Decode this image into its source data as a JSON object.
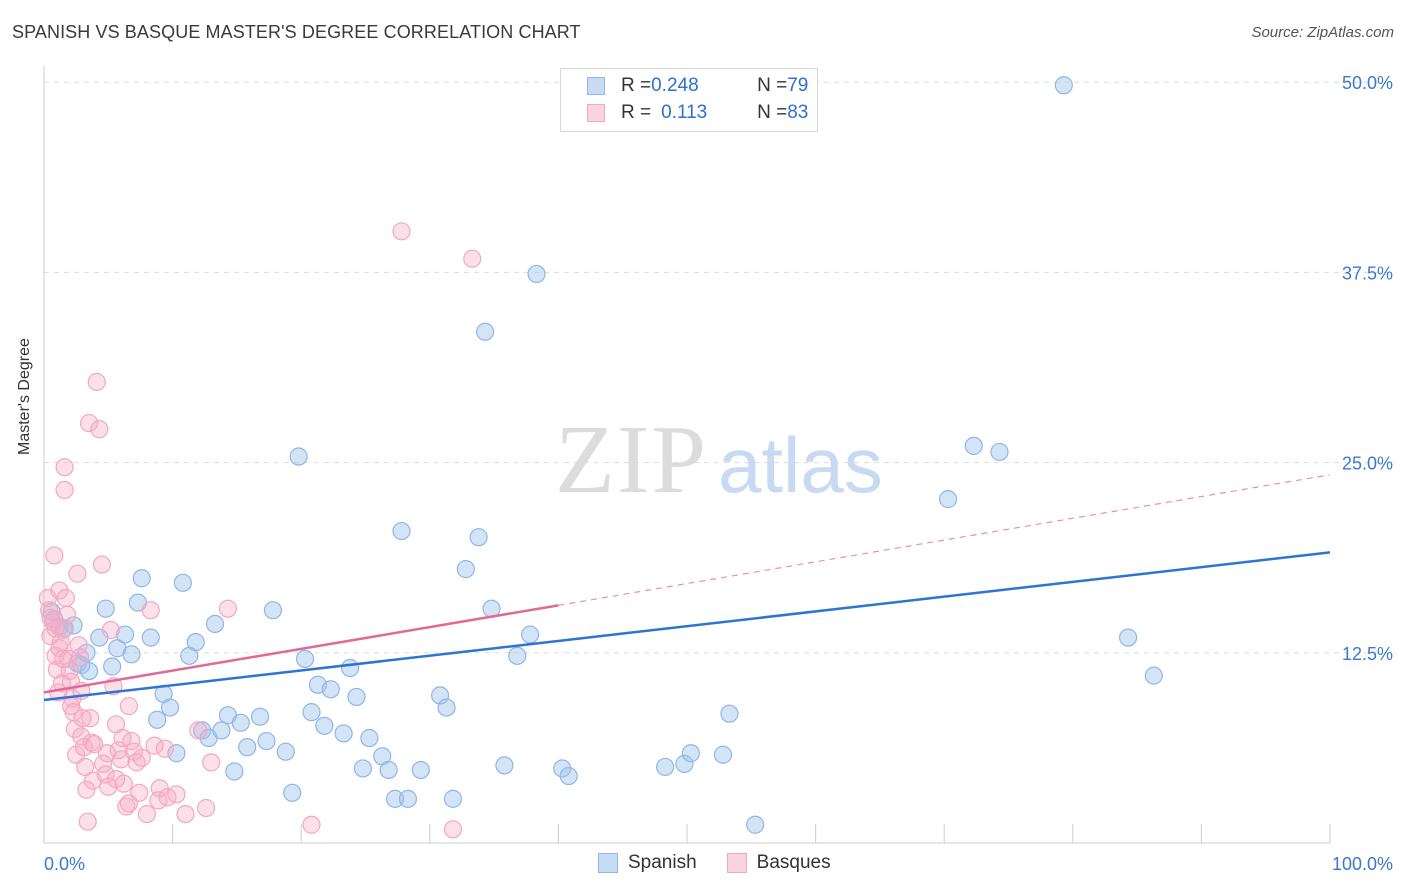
{
  "title": "SPANISH VS BASQUE MASTER'S DEGREE CORRELATION CHART",
  "source": "Source: ZipAtlas.com",
  "watermark": {
    "zip": "ZIP",
    "atlas": "atlas"
  },
  "legend_top": [
    {
      "r_label": "R = ",
      "r_value": "0.248",
      "n_label": "N = ",
      "n_value": "79",
      "color": "#8fb6e8"
    },
    {
      "r_label": "R = ",
      "r_value": "0.113",
      "n_label": "N = ",
      "n_value": "83",
      "color": "#f4a7c0"
    }
  ],
  "chart_data": {
    "type": "scatter",
    "title": "SPANISH VS BASQUE MASTER'S DEGREE CORRELATION CHART",
    "ylabel": "Master's Degree",
    "xlim": [
      0,
      100
    ],
    "ylim": [
      0,
      51
    ],
    "x_tick_labels": [
      {
        "value": 0,
        "label": "0.0%"
      },
      {
        "value": 100,
        "label": "100.0%"
      }
    ],
    "y_tick_labels": [
      {
        "value": 12.5,
        "label": "12.5%"
      },
      {
        "value": 25,
        "label": "25.0%"
      },
      {
        "value": 37.5,
        "label": "37.5%"
      },
      {
        "value": 50,
        "label": "50.0%"
      }
    ],
    "grid": true,
    "legend_position": "bottom",
    "series": [
      {
        "name": "Spanish",
        "color": "#8fb6e8",
        "line_color": "#2f74d0",
        "trend": {
          "x": [
            0,
            100
          ],
          "y": [
            9.4,
            19.1
          ],
          "dashed_from": null
        },
        "points": [
          [
            0.6,
            15.2
          ],
          [
            0.8,
            14.7
          ],
          [
            1.2,
            14.2
          ],
          [
            1.6,
            14.1
          ],
          [
            2.3,
            14.3
          ],
          [
            2.6,
            11.8
          ],
          [
            2.9,
            11.7
          ],
          [
            3.3,
            12.5
          ],
          [
            3.5,
            11.3
          ],
          [
            4.3,
            13.5
          ],
          [
            4.8,
            15.4
          ],
          [
            5.3,
            11.6
          ],
          [
            5.7,
            12.8
          ],
          [
            6.3,
            13.7
          ],
          [
            6.8,
            12.4
          ],
          [
            7.3,
            15.8
          ],
          [
            7.6,
            17.4
          ],
          [
            8.3,
            13.5
          ],
          [
            8.8,
            8.1
          ],
          [
            9.3,
            9.8
          ],
          [
            9.8,
            8.9
          ],
          [
            10.3,
            5.9
          ],
          [
            10.8,
            17.1
          ],
          [
            11.3,
            12.3
          ],
          [
            11.8,
            13.2
          ],
          [
            12.3,
            7.4
          ],
          [
            12.8,
            6.9
          ],
          [
            13.3,
            14.4
          ],
          [
            13.8,
            7.4
          ],
          [
            14.3,
            8.4
          ],
          [
            14.8,
            4.7
          ],
          [
            15.3,
            7.9
          ],
          [
            15.8,
            6.3
          ],
          [
            16.8,
            8.3
          ],
          [
            17.3,
            6.7
          ],
          [
            17.8,
            15.3
          ],
          [
            18.8,
            6.0
          ],
          [
            19.3,
            3.3
          ],
          [
            19.8,
            25.4
          ],
          [
            20.3,
            12.1
          ],
          [
            20.8,
            8.6
          ],
          [
            21.3,
            10.4
          ],
          [
            21.8,
            7.7
          ],
          [
            22.3,
            10.1
          ],
          [
            23.3,
            7.2
          ],
          [
            23.8,
            11.5
          ],
          [
            24.3,
            9.6
          ],
          [
            24.8,
            4.9
          ],
          [
            25.3,
            6.9
          ],
          [
            26.3,
            5.7
          ],
          [
            26.8,
            4.8
          ],
          [
            27.3,
            2.9
          ],
          [
            27.8,
            20.5
          ],
          [
            28.3,
            2.9
          ],
          [
            29.3,
            4.8
          ],
          [
            30.8,
            9.7
          ],
          [
            31.3,
            8.9
          ],
          [
            31.8,
            2.9
          ],
          [
            32.8,
            18.0
          ],
          [
            33.8,
            20.1
          ],
          [
            34.3,
            33.6
          ],
          [
            34.8,
            15.4
          ],
          [
            35.8,
            5.1
          ],
          [
            36.8,
            12.3
          ],
          [
            37.8,
            13.7
          ],
          [
            38.3,
            37.4
          ],
          [
            40.3,
            4.9
          ],
          [
            40.8,
            4.4
          ],
          [
            48.3,
            5.0
          ],
          [
            49.8,
            5.2
          ],
          [
            50.3,
            5.9
          ],
          [
            52.8,
            5.8
          ],
          [
            53.3,
            8.5
          ],
          [
            55.3,
            1.2
          ],
          [
            70.3,
            22.6
          ],
          [
            72.3,
            26.1
          ],
          [
            74.3,
            25.7
          ],
          [
            79.3,
            49.8
          ],
          [
            84.3,
            13.5
          ],
          [
            86.3,
            11.0
          ]
        ]
      },
      {
        "name": "Basques",
        "color": "#f4a7c0",
        "line_color": "#e06a97",
        "trend": {
          "x": [
            0,
            100
          ],
          "y": [
            9.9,
            24.2
          ],
          "solid_until": 40
        },
        "points": [
          [
            0.3,
            16.1
          ],
          [
            0.4,
            15.3
          ],
          [
            0.5,
            13.6
          ],
          [
            0.7,
            14.5
          ],
          [
            0.8,
            18.9
          ],
          [
            0.9,
            12.3
          ],
          [
            1.0,
            11.4
          ],
          [
            1.1,
            9.9
          ],
          [
            1.2,
            16.6
          ],
          [
            1.3,
            13.2
          ],
          [
            1.4,
            10.5
          ],
          [
            1.5,
            14.0
          ],
          [
            1.6,
            24.7
          ],
          [
            1.6,
            23.2
          ],
          [
            1.7,
            16.1
          ],
          [
            1.8,
            15.0
          ],
          [
            1.9,
            12.1
          ],
          [
            2.0,
            11.3
          ],
          [
            2.1,
            10.6
          ],
          [
            2.2,
            9.5
          ],
          [
            2.3,
            8.6
          ],
          [
            2.4,
            7.5
          ],
          [
            2.5,
            5.8
          ],
          [
            2.6,
            17.7
          ],
          [
            2.7,
            13.0
          ],
          [
            2.8,
            12.2
          ],
          [
            2.9,
            10.0
          ],
          [
            3.0,
            8.2
          ],
          [
            3.1,
            6.3
          ],
          [
            3.2,
            5.0
          ],
          [
            3.3,
            3.5
          ],
          [
            3.4,
            1.4
          ],
          [
            3.5,
            27.6
          ],
          [
            3.6,
            8.2
          ],
          [
            3.7,
            6.6
          ],
          [
            3.8,
            4.1
          ],
          [
            4.1,
            30.3
          ],
          [
            4.3,
            27.2
          ],
          [
            4.5,
            18.3
          ],
          [
            4.6,
            5.2
          ],
          [
            4.8,
            4.5
          ],
          [
            5.0,
            3.7
          ],
          [
            5.2,
            14.0
          ],
          [
            5.4,
            10.3
          ],
          [
            5.6,
            7.8
          ],
          [
            5.8,
            6.1
          ],
          [
            6.0,
            5.5
          ],
          [
            6.2,
            3.9
          ],
          [
            6.4,
            2.4
          ],
          [
            6.6,
            9.0
          ],
          [
            6.8,
            6.7
          ],
          [
            7.0,
            6.0
          ],
          [
            7.2,
            5.3
          ],
          [
            7.4,
            3.3
          ],
          [
            8.0,
            1.9
          ],
          [
            8.3,
            15.3
          ],
          [
            8.6,
            6.4
          ],
          [
            9.0,
            3.6
          ],
          [
            9.6,
            3.0
          ],
          [
            10.3,
            3.2
          ],
          [
            11.0,
            1.9
          ],
          [
            12.0,
            7.4
          ],
          [
            12.6,
            2.3
          ],
          [
            13.0,
            5.3
          ],
          [
            14.3,
            15.4
          ],
          [
            20.8,
            1.2
          ],
          [
            27.8,
            40.2
          ],
          [
            31.8,
            0.9
          ],
          [
            33.3,
            38.4
          ],
          [
            0.5,
            14.8
          ],
          [
            0.9,
            14.1
          ],
          [
            1.2,
            12.8
          ],
          [
            1.5,
            12.1
          ],
          [
            2.1,
            9.0
          ],
          [
            2.9,
            7.0
          ],
          [
            3.9,
            6.5
          ],
          [
            4.9,
            5.9
          ],
          [
            5.6,
            4.2
          ],
          [
            6.1,
            6.9
          ],
          [
            6.6,
            2.6
          ],
          [
            7.6,
            5.6
          ],
          [
            8.9,
            2.8
          ],
          [
            9.4,
            6.2
          ]
        ]
      }
    ]
  }
}
